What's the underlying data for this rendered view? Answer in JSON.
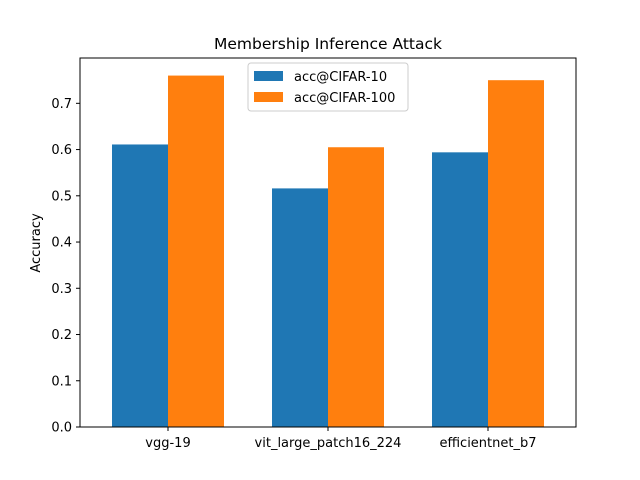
{
  "chart_data": {
    "type": "bar",
    "title": "Membership Inference Attack",
    "xlabel": "",
    "ylabel": "Accuracy",
    "categories": [
      "vgg-19",
      "vit_large_patch16_224",
      "efficientnet_b7"
    ],
    "series": [
      {
        "name": "acc@CIFAR-10",
        "values": [
          0.611,
          0.516,
          0.594
        ],
        "color": "#1f77b4"
      },
      {
        "name": "acc@CIFAR-100",
        "values": [
          0.76,
          0.605,
          0.75
        ],
        "color": "#ff7f0e"
      }
    ],
    "ylim": [
      0,
      0.798
    ],
    "yticks": [
      0.0,
      0.1,
      0.2,
      0.3,
      0.4,
      0.5,
      0.6,
      0.7
    ],
    "ytick_labels": [
      "0.0",
      "0.1",
      "0.2",
      "0.3",
      "0.4",
      "0.5",
      "0.6",
      "0.7"
    ],
    "grid": false,
    "legend_position": "top-center"
  }
}
